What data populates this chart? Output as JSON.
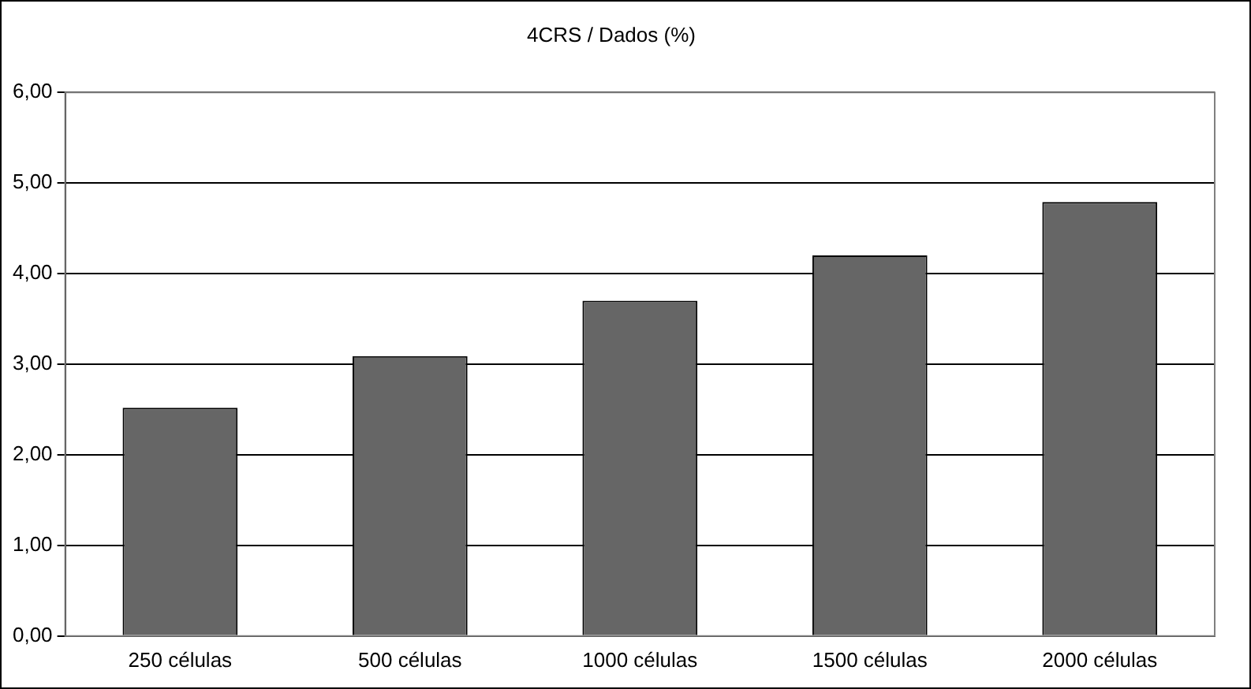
{
  "chart_data": {
    "type": "bar",
    "title": "4CRS / Dados (%)",
    "categories": [
      "250 células",
      "500 células",
      "1000 células",
      "1500 células",
      "2000 células"
    ],
    "values": [
      2.52,
      3.09,
      3.7,
      4.2,
      4.79
    ],
    "color": "#666666",
    "ylim": [
      0,
      6
    ],
    "yticks": [
      {
        "value": 0,
        "label": "0,00"
      },
      {
        "value": 1,
        "label": "1,00"
      },
      {
        "value": 2,
        "label": "2,00"
      },
      {
        "value": 3,
        "label": "3,00"
      },
      {
        "value": 4,
        "label": "4,00"
      },
      {
        "value": 5,
        "label": "5,00"
      },
      {
        "value": 6,
        "label": "6,00"
      }
    ],
    "grid": "y",
    "legend": false
  }
}
